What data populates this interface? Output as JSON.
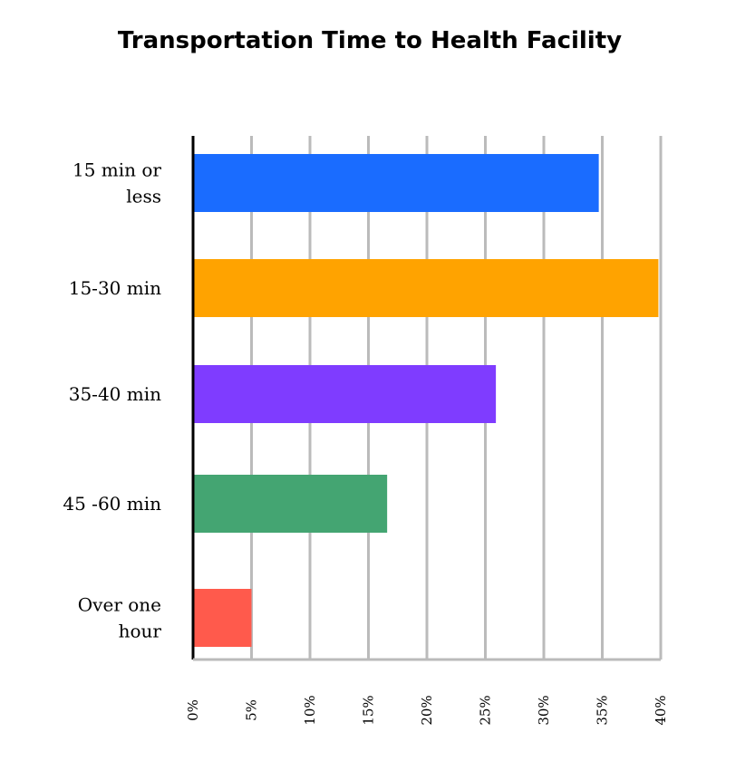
{
  "chart_data": {
    "type": "bar",
    "orientation": "horizontal",
    "title": "Transportation Time to Health Facility",
    "xlabel": "",
    "ylabel": "",
    "categories": [
      [
        "15 min or",
        "less"
      ],
      [
        "15-30 min"
      ],
      [
        "35-40 min"
      ],
      [
        "45 -60 min"
      ],
      [
        "Over one",
        "hour"
      ]
    ],
    "values": [
      34.7,
      39.8,
      25.9,
      16.6,
      5.0
    ],
    "colors": [
      "#1a6cff",
      "#ffa300",
      "#7f3cff",
      "#44a572",
      "#ff5a4c"
    ],
    "xlim": [
      0,
      40
    ],
    "xticks": [
      0,
      5,
      10,
      15,
      20,
      25,
      30,
      35,
      40
    ],
    "xtick_labels": [
      "0%",
      "5%",
      "10%",
      "15%",
      "20%",
      "25%",
      "30%",
      "35%",
      "40%"
    ],
    "grid": true,
    "grid_color": "#bbbbbb",
    "axis_color": "#000000",
    "legend": "none"
  }
}
